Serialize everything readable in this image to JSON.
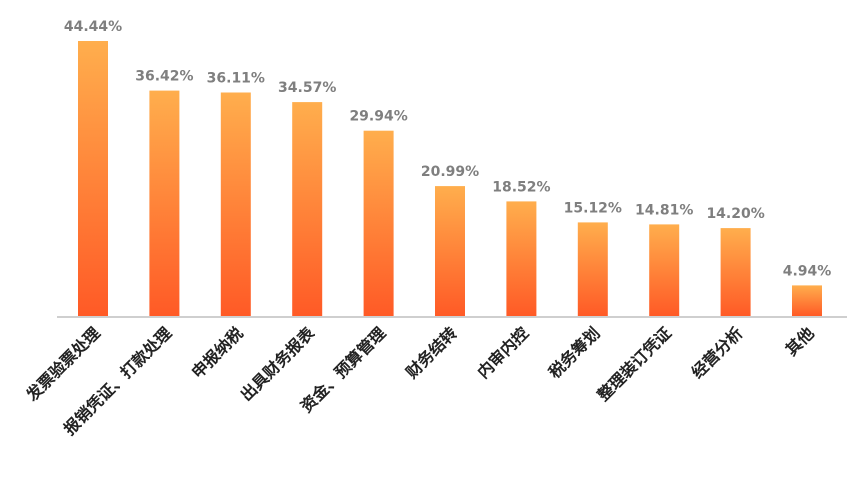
{
  "chart_data": {
    "type": "bar",
    "categories": [
      "发票验票处理",
      "报销凭证、打款处理",
      "申报纳税",
      "出具财务报表",
      "资金、预算管理",
      "财务结转",
      "内审内控",
      "税务筹划",
      "整理装订凭证",
      "经营分析",
      "其他"
    ],
    "values": [
      44.44,
      36.42,
      36.11,
      34.57,
      29.94,
      20.99,
      18.52,
      15.12,
      14.81,
      14.2,
      4.94
    ],
    "value_labels": [
      "44.44%",
      "36.42%",
      "36.11%",
      "34.57%",
      "29.94%",
      "20.99%",
      "18.52%",
      "15.12%",
      "14.81%",
      "14.20%",
      "4.94%"
    ],
    "ylim": [
      0,
      44.44
    ],
    "grid": false,
    "legend": "none",
    "colors": {
      "bar_top": "#ffae4d",
      "bar_bottom": "#ff5a26",
      "axis": "#bfbfbf",
      "value_text": "#7f7f7f",
      "category_text": "#222222"
    }
  }
}
